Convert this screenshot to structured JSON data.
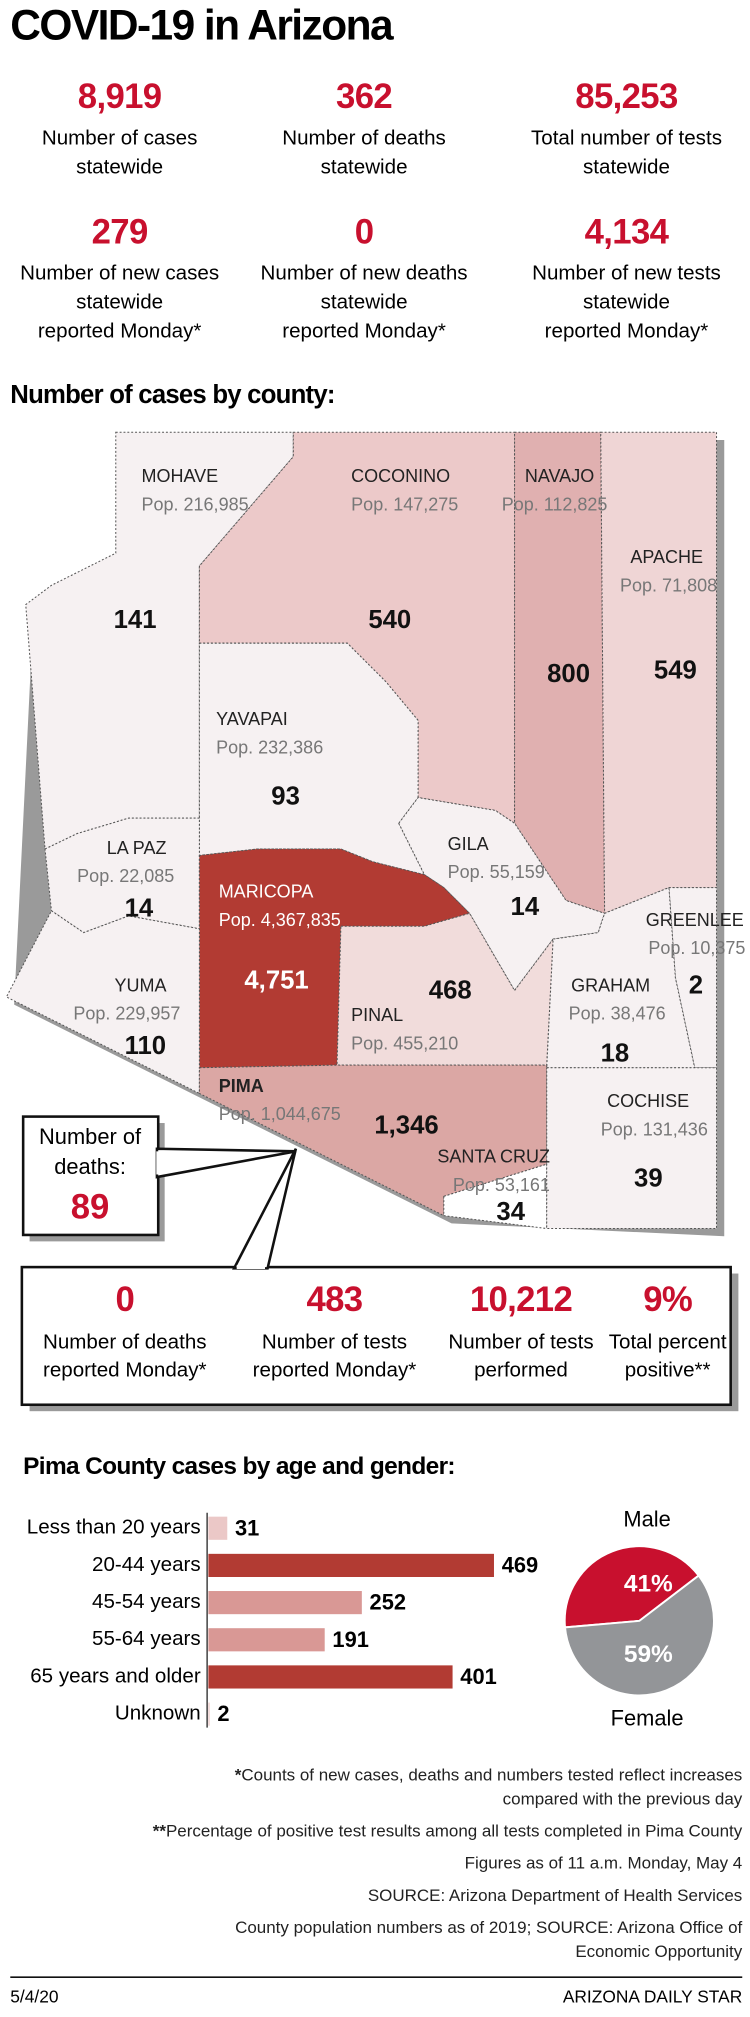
{
  "title": "COVID-19 in Arizona",
  "statewide": [
    {
      "value": "8,919",
      "label": [
        "Number of cases",
        "statewide"
      ]
    },
    {
      "value": "362",
      "label": [
        "Number of deaths",
        "statewide"
      ]
    },
    {
      "value": "85,253",
      "label": [
        "Total number of tests",
        "statewide"
      ]
    },
    {
      "value": "279",
      "label": [
        "Number of new cases",
        "statewide",
        "reported Monday*"
      ]
    },
    {
      "value": "0",
      "label": [
        "Number of new deaths",
        "statewide",
        "reported Monday*"
      ]
    },
    {
      "value": "4,134",
      "label": [
        "Number of new tests",
        "statewide",
        "reported Monday*"
      ]
    }
  ],
  "county_title": "Number of cases by county:",
  "counties": [
    {
      "name": "MOHAVE",
      "population": "Pop. 216,985",
      "cases": "141"
    },
    {
      "name": "COCONINO",
      "population": "Pop. 147,275",
      "cases": "540"
    },
    {
      "name": "NAVAJO",
      "population": "Pop. 112,825",
      "cases": "800"
    },
    {
      "name": "APACHE",
      "population": "Pop. 71,808",
      "cases": "549"
    },
    {
      "name": "YAVAPAI",
      "population": "Pop. 232,386",
      "cases": "93"
    },
    {
      "name": "LA PAZ",
      "population": "Pop. 22,085",
      "cases": "14"
    },
    {
      "name": "GILA",
      "population": "Pop. 55,159",
      "cases": "14"
    },
    {
      "name": "MARICOPA",
      "population": "Pop. 4,367,835",
      "cases": "4,751"
    },
    {
      "name": "GREENLEE",
      "population": "Pop. 10,375",
      "cases": "2"
    },
    {
      "name": "YUMA",
      "population": "Pop. 229,957",
      "cases": "110"
    },
    {
      "name": "PINAL",
      "population": "Pop. 455,210",
      "cases": "468"
    },
    {
      "name": "GRAHAM",
      "population": "Pop. 38,476",
      "cases": "18"
    },
    {
      "name": "PIMA",
      "population": "Pop. 1,044,675",
      "cases": "1,346"
    },
    {
      "name": "SANTA CRUZ",
      "population": "Pop. 53,161",
      "cases": "34"
    },
    {
      "name": "COCHISE",
      "population": "Pop. 131,436",
      "cases": "39"
    }
  ],
  "pima_deaths": {
    "label": [
      "Number of",
      "deaths:"
    ],
    "value": "89"
  },
  "pima_stats": [
    {
      "value": "0",
      "label": [
        "Number of deaths",
        "reported Monday*"
      ]
    },
    {
      "value": "483",
      "label": [
        "Number of tests",
        "reported Monday*"
      ]
    },
    {
      "value": "10,212",
      "label": [
        "Number of tests",
        "performed"
      ]
    },
    {
      "value": "9%",
      "label": [
        "Total percent",
        "positive**"
      ]
    }
  ],
  "age_chart": {
    "type": "bar",
    "title": "Pima County cases by age and gender:",
    "categories": [
      "Less than 20 years",
      "20-44 years",
      "45-54 years",
      "55-64 years",
      "65 years and older",
      "Unknown"
    ],
    "values": [
      31,
      469,
      252,
      191,
      401,
      2
    ],
    "colors": [
      "#ebc8c7",
      "#b23b33",
      "#d99895",
      "#d99895",
      "#b23b33",
      "#ebc8c7"
    ]
  },
  "gender_chart": {
    "type": "pie",
    "names": [
      "Male",
      "Female"
    ],
    "values": [
      41,
      59
    ],
    "value_labels": [
      "41%",
      "59%"
    ],
    "colors": [
      "#c8102e",
      "#939598"
    ]
  },
  "notes": [
    {
      "mark": "*",
      "lines": [
        "Counts of new cases, deaths and numbers tested reflect increases",
        "compared with the previous day"
      ]
    },
    {
      "mark": "**",
      "lines": [
        "Percentage of positive test results among all tests completed in Pima County"
      ]
    },
    {
      "lines": [
        "Figures as of 11 a.m. Monday, May 4"
      ]
    },
    {
      "lines": [
        "SOURCE: Arizona Department of Health Services"
      ]
    },
    {
      "lines": [
        "County population numbers as of 2019; SOURCE: Arizona Office of",
        "Economic Opportunity"
      ]
    }
  ],
  "footer": {
    "date": "5/4/20",
    "credit": "ARIZONA DAILY STAR"
  }
}
